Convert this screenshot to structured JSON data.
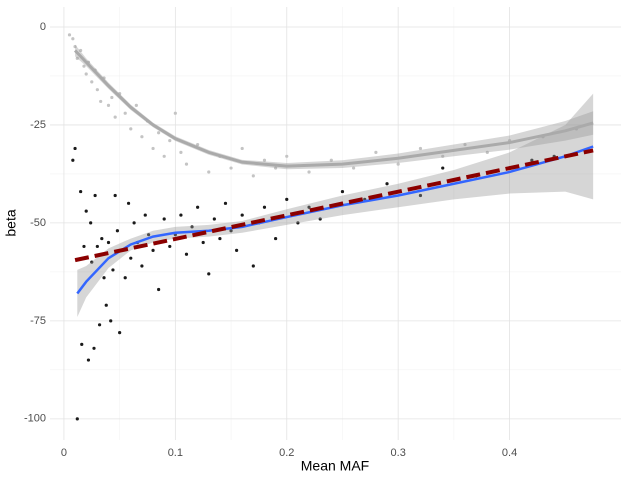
{
  "chart_data": {
    "type": "scatter",
    "x_label": "Mean MAF",
    "y_label": "beta",
    "xlim": [
      -0.0125,
      0.5
    ],
    "ylim": [
      -105.4,
      5.1
    ],
    "xticks": [
      0,
      0.1,
      0.2,
      0.3,
      0.4
    ],
    "yticks": [
      -100,
      -75,
      -50,
      -25,
      0
    ],
    "grid": true,
    "bands": [
      {
        "color": "#999999",
        "x": [
          0.012,
          0.02,
          0.04,
          0.06,
          0.08,
          0.1,
          0.13,
          0.16,
          0.2,
          0.25,
          0.3,
          0.35,
          0.4,
          0.45,
          0.475
        ],
        "lower": [
          -74,
          -69,
          -61.5,
          -57,
          -55,
          -54,
          -53.5,
          -52.5,
          -50.5,
          -48,
          -46,
          -44,
          -42.5,
          -42,
          -44
        ],
        "upper": [
          -62,
          -61,
          -56.5,
          -54,
          -52,
          -51,
          -50.5,
          -49.5,
          -46.5,
          -43,
          -40,
          -36.5,
          -32,
          -25,
          -17
        ]
      },
      {
        "color": "#999999",
        "x": [
          0.01,
          0.02,
          0.04,
          0.06,
          0.08,
          0.1,
          0.13,
          0.16,
          0.2,
          0.25,
          0.3,
          0.35,
          0.4,
          0.45,
          0.475
        ],
        "lower": [
          -7.5,
          -10,
          -15.8,
          -21.2,
          -25.6,
          -29.1,
          -32.6,
          -35.1,
          -36.3,
          -36,
          -34.7,
          -33,
          -31.3,
          -29,
          -27.5
        ],
        "upper": [
          -4.5,
          -8,
          -14.2,
          -19.8,
          -24.4,
          -27.9,
          -31.4,
          -33.9,
          -34.7,
          -34,
          -32.3,
          -30,
          -27.7,
          -24,
          -21.5
        ]
      }
    ],
    "series": [
      {
        "style": "points",
        "color": "#c4c4c4",
        "x": [
          0.005,
          0.008,
          0.01,
          0.012,
          0.015,
          0.018,
          0.02,
          0.022,
          0.025,
          0.028,
          0.03,
          0.033,
          0.036,
          0.04,
          0.043,
          0.046,
          0.05,
          0.055,
          0.06,
          0.065,
          0.07,
          0.075,
          0.08,
          0.085,
          0.09,
          0.095,
          0.1,
          0.105,
          0.11,
          0.12,
          0.13,
          0.14,
          0.15,
          0.16,
          0.17,
          0.18,
          0.19,
          0.2,
          0.22,
          0.24,
          0.26,
          0.28,
          0.3,
          0.32,
          0.34,
          0.36,
          0.38,
          0.4,
          0.43,
          0.46
        ],
        "values": [
          -2,
          -3,
          -5,
          -8,
          -6,
          -10,
          -12,
          -9,
          -14,
          -11,
          -16,
          -19,
          -13,
          -20,
          -18,
          -23,
          -17,
          -22,
          -26,
          -20,
          -28,
          -24,
          -31,
          -27,
          -33,
          -29,
          -22,
          -32,
          -35,
          -30,
          -37,
          -33,
          -36,
          -31,
          -38,
          -34,
          -36,
          -33,
          -37,
          -34,
          -36,
          -32,
          -35,
          -31,
          -33,
          -30,
          -32,
          -29,
          -28,
          -26
        ]
      },
      {
        "style": "points",
        "color": "#1a1a1a",
        "x": [
          0.008,
          0.01,
          0.012,
          0.015,
          0.016,
          0.018,
          0.02,
          0.022,
          0.024,
          0.025,
          0.027,
          0.028,
          0.03,
          0.032,
          0.034,
          0.036,
          0.038,
          0.04,
          0.042,
          0.044,
          0.046,
          0.048,
          0.05,
          0.052,
          0.055,
          0.058,
          0.06,
          0.063,
          0.066,
          0.07,
          0.073,
          0.076,
          0.08,
          0.085,
          0.09,
          0.095,
          0.1,
          0.105,
          0.11,
          0.115,
          0.12,
          0.125,
          0.13,
          0.135,
          0.14,
          0.145,
          0.15,
          0.155,
          0.16,
          0.17,
          0.175,
          0.18,
          0.19,
          0.2,
          0.21,
          0.22,
          0.23,
          0.25,
          0.27,
          0.29,
          0.32,
          0.34,
          0.37,
          0.42,
          0.44
        ],
        "values": [
          -34,
          -31,
          -100,
          -42,
          -81,
          -56,
          -47,
          -85,
          -50,
          -60,
          -82,
          -43,
          -56,
          -76,
          -54,
          -64,
          -71,
          -55,
          -75,
          -62,
          -43,
          -52,
          -78,
          -57,
          -64,
          -45,
          -59,
          -50,
          -55,
          -61,
          -48,
          -53,
          -57,
          -67,
          -49,
          -56,
          -53,
          -48,
          -58,
          -51,
          -46,
          -55,
          -63,
          -49,
          -54,
          -45,
          -52,
          -57,
          -48,
          -61,
          -50,
          -46,
          -54,
          -44,
          -50,
          -46,
          -49,
          -42,
          -44,
          -40,
          -43,
          -36,
          -38,
          -34,
          -33
        ]
      },
      {
        "style": "line",
        "color": "#aaaaaa",
        "width": 3,
        "x": [
          0.01,
          0.02,
          0.04,
          0.06,
          0.08,
          0.1,
          0.13,
          0.16,
          0.2,
          0.25,
          0.3,
          0.35,
          0.4,
          0.45,
          0.475
        ],
        "values": [
          -6,
          -9,
          -15,
          -20.5,
          -25,
          -28.5,
          -32,
          -34.5,
          -35.5,
          -35,
          -33.5,
          -31.5,
          -29.5,
          -26.5,
          -24.5
        ]
      },
      {
        "style": "line",
        "color": "#3366ff",
        "width": 2.5,
        "x": [
          0.012,
          0.02,
          0.04,
          0.06,
          0.08,
          0.1,
          0.13,
          0.16,
          0.2,
          0.25,
          0.3,
          0.35,
          0.4,
          0.45,
          0.475
        ],
        "values": [
          -68,
          -65,
          -59,
          -55.5,
          -53.5,
          -52.5,
          -52,
          -51,
          -48.5,
          -45.5,
          -43,
          -40,
          -37,
          -33,
          -30.5
        ]
      },
      {
        "style": "dashed",
        "color": "#8b0000",
        "width": 4,
        "x": [
          0.01,
          0.475
        ],
        "values": [
          -59.5,
          -31.5
        ]
      }
    ]
  }
}
